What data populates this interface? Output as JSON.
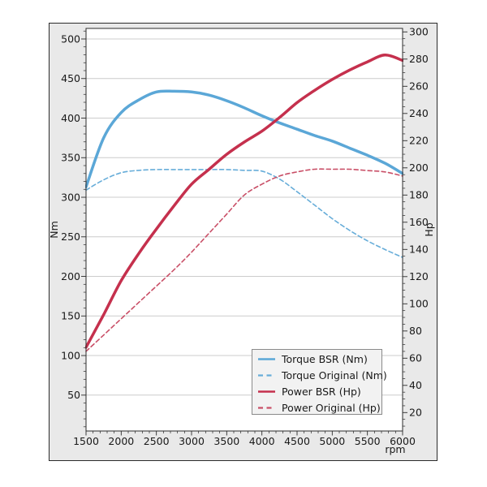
{
  "colors": {
    "page_bg": "#ffffff",
    "figure_bg": "#e9e9e9",
    "figure_border": "#2b2b2b",
    "plot_bg": "#ffffff",
    "grid": "#cccccc",
    "spine": "#2b2b2b",
    "tick_text": "#191919",
    "legend_bg": "#f2f2f2",
    "legend_border": "#8a8a8a",
    "torque_bsr": "#5BA7D7",
    "torque_original": "#67ADD9",
    "power_bsr": "#C5304D",
    "power_original": "#C94F67"
  },
  "axes": {
    "x": {
      "label": "rpm",
      "min": 1500,
      "max": 6000,
      "ticks": [
        1500,
        2000,
        2500,
        3000,
        3500,
        4000,
        4500,
        5000,
        5500,
        6000
      ],
      "minor_step": 100
    },
    "y_left": {
      "label": "Nm",
      "ticks": [
        50,
        100,
        150,
        200,
        250,
        300,
        350,
        400,
        450,
        500
      ],
      "minor_step": 10,
      "range": [
        5,
        513
      ]
    },
    "y_right": {
      "label": "Hp",
      "ticks": [
        20,
        40,
        60,
        80,
        100,
        120,
        140,
        160,
        180,
        200,
        220,
        240,
        260,
        280,
        300
      ],
      "minor_step": 5,
      "range": [
        7,
        302
      ]
    }
  },
  "legend": {
    "items": [
      {
        "label": "Torque BSR (Nm)",
        "series": "torque_bsr",
        "style": "solid",
        "color": "#5BA7D7"
      },
      {
        "label": "Torque Original (Nm)",
        "series": "torque_original",
        "style": "dashed",
        "color": "#67ADD9"
      },
      {
        "label": "Power BSR (Hp)",
        "series": "power_bsr",
        "style": "solid",
        "color": "#C5304D"
      },
      {
        "label": "Power Original (Hp)",
        "series": "power_original",
        "style": "dashed",
        "color": "#C94F67"
      }
    ]
  },
  "chart_data": {
    "type": "line",
    "xlabel": "rpm",
    "xlim": [
      1500,
      6000
    ],
    "left_ylabel": "Nm",
    "right_ylabel": "Hp",
    "grid": "horizontal, left axis ticks only",
    "legend_position": "lower right",
    "x": [
      1500,
      1750,
      2000,
      2250,
      2500,
      2750,
      3000,
      3250,
      3500,
      3750,
      4000,
      4250,
      4500,
      4750,
      5000,
      5250,
      5500,
      5750,
      6000
    ],
    "series": [
      {
        "name": "Torque BSR (Nm)",
        "axis": "left",
        "style": "solid",
        "color": "#5BA7D7",
        "values": [
          313,
          375,
          407,
          423,
          433,
          434,
          433,
          429,
          422,
          413,
          403,
          394,
          386,
          378,
          371,
          362,
          353,
          343,
          330
        ]
      },
      {
        "name": "Torque Original (Nm)",
        "axis": "left",
        "style": "dashed",
        "color": "#67ADD9",
        "values": [
          309,
          322,
          331,
          334,
          335,
          335,
          335,
          335,
          335,
          334,
          333,
          323,
          307,
          290,
          273,
          258,
          245,
          234,
          224
        ]
      },
      {
        "name": "Power BSR (Hp)",
        "axis": "right",
        "style": "solid",
        "color": "#C5304D",
        "values": [
          68,
          92,
          117,
          137,
          155,
          172,
          188,
          199,
          210,
          219,
          227,
          237,
          248,
          257,
          265,
          272,
          278,
          283,
          279
        ]
      },
      {
        "name": "Power Original (Hp)",
        "axis": "right",
        "style": "dashed",
        "color": "#C94F67",
        "values": [
          65,
          77,
          89,
          101,
          113,
          125,
          138,
          152,
          166,
          180,
          188,
          194,
          197,
          199,
          199,
          199,
          198,
          197,
          194
        ]
      }
    ]
  }
}
